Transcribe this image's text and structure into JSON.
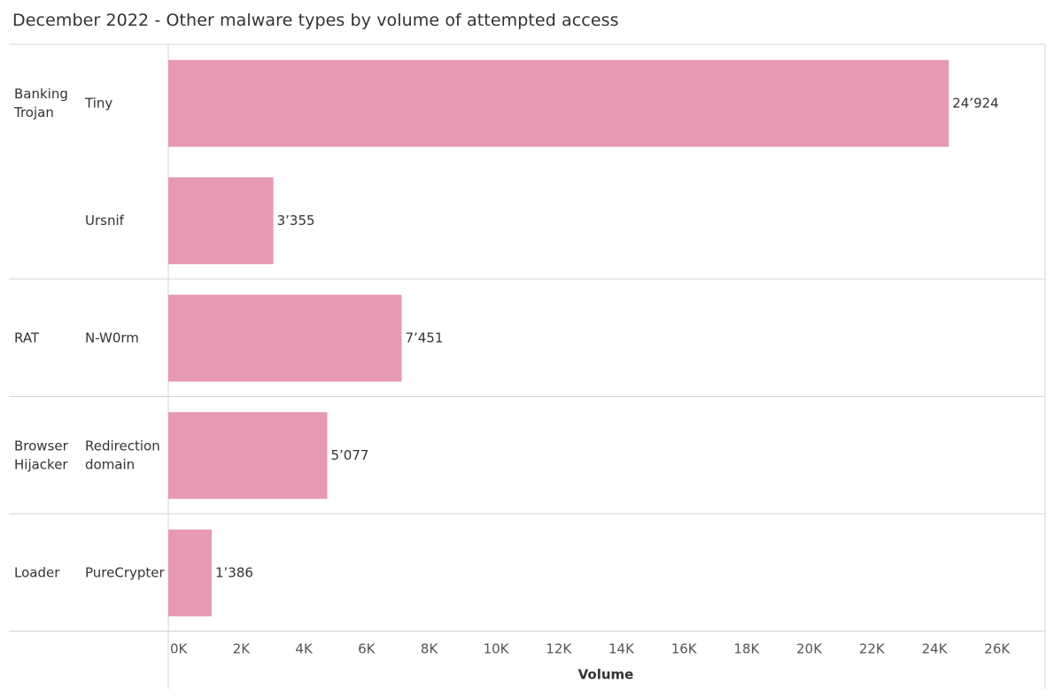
{
  "title": "December 2022 - Other malware types by volume of attempted access",
  "colors": {
    "bar": "#e799b3",
    "grid": "#d4d4d4"
  },
  "chart_data": {
    "type": "bar",
    "orientation": "horizontal",
    "groups": [
      {
        "label": [
          "Banking",
          "Trojan"
        ],
        "categories": [
          "Tiny",
          "Ursnif"
        ]
      },
      {
        "label": [
          "RAT"
        ],
        "categories": [
          "N-W0rm"
        ]
      },
      {
        "label": [
          "Browser",
          "Hijacker"
        ],
        "categories": [
          "Redirection domain"
        ]
      },
      {
        "label": [
          "Loader"
        ],
        "categories": [
          "PureCrypter"
        ]
      }
    ],
    "categories": [
      "Tiny",
      "Ursnif",
      "N-W0rm",
      "Redirection domain",
      "PureCrypter"
    ],
    "category_lines": [
      [
        "Tiny"
      ],
      [
        "Ursnif"
      ],
      [
        "N-W0rm"
      ],
      [
        "Redirection",
        "domain"
      ],
      [
        "PureCrypter"
      ]
    ],
    "values": [
      24924,
      3355,
      7451,
      5077,
      1386
    ],
    "value_labels": [
      "24’924",
      "3’355",
      "7’451",
      "5’077",
      "1’386"
    ],
    "xlabel": "Volume",
    "xlim": [
      0,
      28000
    ],
    "xticks": [
      0,
      2000,
      4000,
      6000,
      8000,
      10000,
      12000,
      14000,
      16000,
      18000,
      20000,
      22000,
      24000,
      26000
    ],
    "xtick_labels": [
      "0K",
      "2K",
      "4K",
      "6K",
      "8K",
      "10K",
      "12K",
      "14K",
      "16K",
      "18K",
      "20K",
      "22K",
      "24K",
      "26K"
    ],
    "grid": false,
    "legend": "none"
  }
}
